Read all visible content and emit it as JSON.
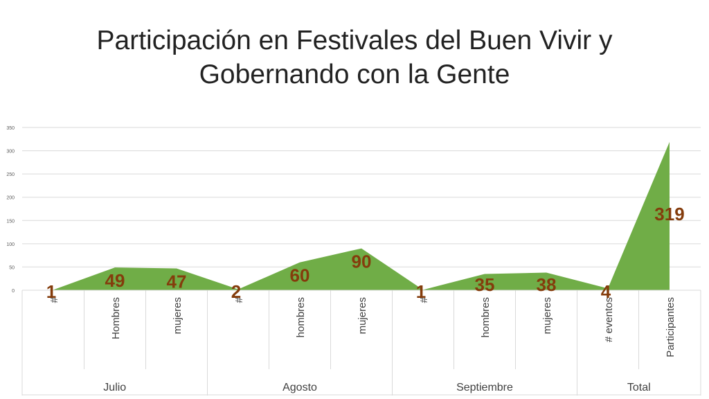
{
  "slide": {
    "title_line1": "Participación en Festivales del Buen Vivir y",
    "title_line2": "Gobernando con la Gente"
  },
  "colors": {
    "area_fill": "#70AD47",
    "data_label": "#843C0C",
    "grid": "#D9D9D9",
    "axis_text": "#595959",
    "category_text": "#404040"
  },
  "chart_data": {
    "type": "area",
    "title": "",
    "xlabel": "",
    "ylabel": "",
    "ylim": [
      0,
      350
    ],
    "yticks": [
      0,
      50,
      100,
      150,
      200,
      250,
      300,
      350
    ],
    "grid": true,
    "legend": "none",
    "categories": [
      "#",
      "Hombres",
      "mujeres",
      "#",
      "hombres",
      "mujeres",
      "#",
      "hombres",
      "mujeres",
      "# eventos",
      "Participantes"
    ],
    "groups": [
      {
        "label": "Julio",
        "count": 3
      },
      {
        "label": "Agosto",
        "count": 3
      },
      {
        "label": "Septiembre",
        "count": 3
      },
      {
        "label": "Total",
        "count": 2
      }
    ],
    "values": [
      1,
      49,
      47,
      2,
      60,
      90,
      1,
      35,
      38,
      4,
      319
    ],
    "data_labels": [
      "1",
      "49",
      "47",
      "2",
      "60",
      "90",
      "1",
      "35",
      "38",
      "4",
      "319"
    ]
  }
}
